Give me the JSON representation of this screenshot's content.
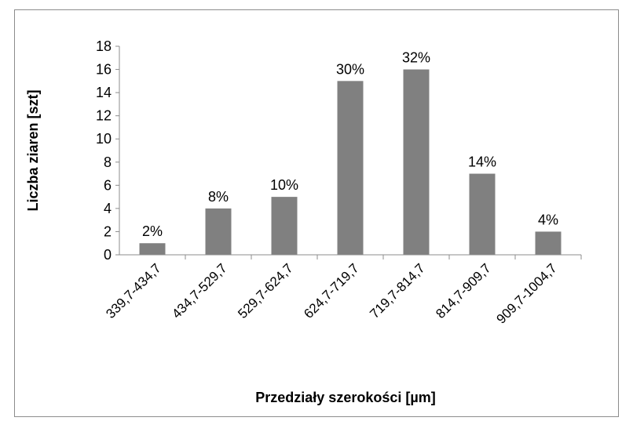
{
  "chart_data": {
    "type": "bar",
    "title": "",
    "xlabel": "Przedziały szerokości  [µm]",
    "ylabel": "Liczba  ziaren  [szt]",
    "categories": [
      "339,7-434,7",
      "434,7-529,7",
      "529,7-624,7",
      "624,7-719,7",
      "719,7-814,7",
      "814,7-909,7",
      "909,7-1004,7"
    ],
    "values": [
      1,
      4,
      5,
      15,
      16,
      7,
      2
    ],
    "data_labels": [
      "2%",
      "8%",
      "10%",
      "30%",
      "32%",
      "14%",
      "4%"
    ],
    "ylim": [
      0,
      18
    ],
    "yticks": [
      0,
      2,
      4,
      6,
      8,
      10,
      12,
      14,
      16,
      18
    ],
    "grid": false,
    "legend": "none",
    "bar_color": "#808080",
    "axis_color": "#8c8c8c"
  }
}
